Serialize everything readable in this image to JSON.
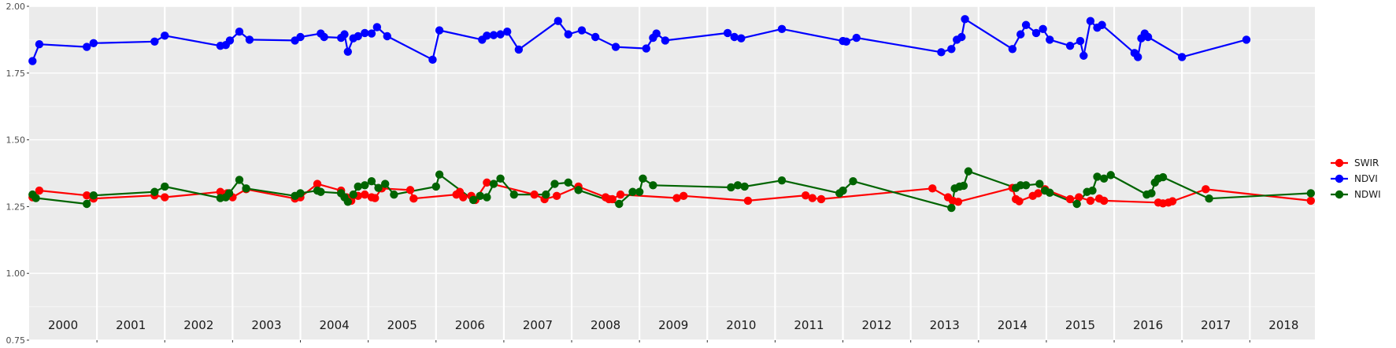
{
  "chart_data": {
    "type": "line",
    "title": "",
    "xlabel": "",
    "ylabel": "",
    "xlim": [
      2000.0,
      2018.96
    ],
    "ylim": [
      0.75,
      2.0
    ],
    "y_ticks": [
      "0.75",
      "1.00",
      "1.25",
      "1.50",
      "1.75",
      "2.00"
    ],
    "y_tick_values": [
      0.75,
      1.0,
      1.25,
      1.5,
      1.75,
      2.0
    ],
    "year_labels": [
      "2000",
      "2001",
      "2002",
      "2003",
      "2004",
      "2005",
      "2006",
      "2007",
      "2008",
      "2009",
      "2010",
      "2011",
      "2012",
      "2013",
      "2014",
      "2015",
      "2016",
      "2017",
      "2018"
    ],
    "grid": true,
    "legend_position": "right",
    "series": [
      {
        "name": "SWIR",
        "color": "#ff0000",
        "points": [
          [
            2000.05,
            1.285
          ],
          [
            2000.15,
            1.31
          ],
          [
            2000.85,
            1.292
          ],
          [
            2000.95,
            1.28
          ],
          [
            2001.85,
            1.292
          ],
          [
            2002.0,
            1.285
          ],
          [
            2002.82,
            1.305
          ],
          [
            2002.92,
            1.3
          ],
          [
            2003.0,
            1.285
          ],
          [
            2003.2,
            1.315
          ],
          [
            2003.92,
            1.28
          ],
          [
            2004.0,
            1.285
          ],
          [
            2004.25,
            1.335
          ],
          [
            2004.6,
            1.31
          ],
          [
            2004.68,
            1.285
          ],
          [
            2004.75,
            1.272
          ],
          [
            2004.85,
            1.29
          ],
          [
            2004.95,
            1.295
          ],
          [
            2005.05,
            1.285
          ],
          [
            2005.1,
            1.282
          ],
          [
            2005.2,
            1.318
          ],
          [
            2005.62,
            1.312
          ],
          [
            2005.67,
            1.28
          ],
          [
            2006.3,
            1.295
          ],
          [
            2006.35,
            1.305
          ],
          [
            2006.4,
            1.285
          ],
          [
            2006.52,
            1.29
          ],
          [
            2006.58,
            1.275
          ],
          [
            2006.75,
            1.34
          ],
          [
            2007.45,
            1.295
          ],
          [
            2007.6,
            1.278
          ],
          [
            2007.78,
            1.29
          ],
          [
            2008.1,
            1.325
          ],
          [
            2008.5,
            1.285
          ],
          [
            2008.55,
            1.278
          ],
          [
            2008.6,
            1.278
          ],
          [
            2008.72,
            1.295
          ],
          [
            2009.55,
            1.282
          ],
          [
            2009.65,
            1.29
          ],
          [
            2010.6,
            1.272
          ],
          [
            2011.45,
            1.292
          ],
          [
            2011.55,
            1.282
          ],
          [
            2011.68,
            1.278
          ],
          [
            2013.32,
            1.318
          ],
          [
            2013.55,
            1.285
          ],
          [
            2013.62,
            1.272
          ],
          [
            2013.7,
            1.268
          ],
          [
            2014.5,
            1.32
          ],
          [
            2014.55,
            1.278
          ],
          [
            2014.6,
            1.27
          ],
          [
            2014.8,
            1.29
          ],
          [
            2014.88,
            1.3
          ],
          [
            2014.98,
            1.315
          ],
          [
            2015.35,
            1.278
          ],
          [
            2015.48,
            1.285
          ],
          [
            2015.65,
            1.272
          ],
          [
            2015.78,
            1.28
          ],
          [
            2015.85,
            1.272
          ],
          [
            2016.65,
            1.265
          ],
          [
            2016.72,
            1.262
          ],
          [
            2016.8,
            1.265
          ],
          [
            2016.86,
            1.27
          ],
          [
            2017.35,
            1.315
          ],
          [
            2018.9,
            1.272
          ]
        ]
      },
      {
        "name": "NDVI",
        "color": "#0000ff",
        "points": [
          [
            2000.05,
            1.795
          ],
          [
            2000.15,
            1.858
          ],
          [
            2000.85,
            1.848
          ],
          [
            2000.95,
            1.862
          ],
          [
            2001.85,
            1.868
          ],
          [
            2002.0,
            1.89
          ],
          [
            2002.82,
            1.852
          ],
          [
            2002.9,
            1.855
          ],
          [
            2002.96,
            1.872
          ],
          [
            2003.1,
            1.905
          ],
          [
            2003.25,
            1.875
          ],
          [
            2003.92,
            1.872
          ],
          [
            2004.0,
            1.885
          ],
          [
            2004.3,
            1.898
          ],
          [
            2004.35,
            1.885
          ],
          [
            2004.6,
            1.882
          ],
          [
            2004.65,
            1.895
          ],
          [
            2004.7,
            1.83
          ],
          [
            2004.78,
            1.88
          ],
          [
            2004.85,
            1.888
          ],
          [
            2004.95,
            1.9
          ],
          [
            2005.05,
            1.898
          ],
          [
            2005.13,
            1.922
          ],
          [
            2005.28,
            1.888
          ],
          [
            2005.95,
            1.8
          ],
          [
            2006.05,
            1.91
          ],
          [
            2006.68,
            1.875
          ],
          [
            2006.75,
            1.89
          ],
          [
            2006.85,
            1.892
          ],
          [
            2006.95,
            1.895
          ],
          [
            2007.05,
            1.905
          ],
          [
            2007.22,
            1.838
          ],
          [
            2007.8,
            1.945
          ],
          [
            2007.95,
            1.895
          ],
          [
            2008.15,
            1.91
          ],
          [
            2008.35,
            1.885
          ],
          [
            2008.65,
            1.848
          ],
          [
            2009.1,
            1.842
          ],
          [
            2009.2,
            1.882
          ],
          [
            2009.25,
            1.898
          ],
          [
            2009.38,
            1.872
          ],
          [
            2010.3,
            1.9
          ],
          [
            2010.4,
            1.885
          ],
          [
            2010.5,
            1.88
          ],
          [
            2011.1,
            1.915
          ],
          [
            2012.0,
            1.87
          ],
          [
            2012.05,
            1.868
          ],
          [
            2012.2,
            1.882
          ],
          [
            2013.45,
            1.828
          ],
          [
            2013.6,
            1.84
          ],
          [
            2013.68,
            1.875
          ],
          [
            2013.75,
            1.885
          ],
          [
            2013.8,
            1.952
          ],
          [
            2014.5,
            1.84
          ],
          [
            2014.62,
            1.895
          ],
          [
            2014.7,
            1.93
          ],
          [
            2014.85,
            1.9
          ],
          [
            2014.95,
            1.915
          ],
          [
            2015.05,
            1.875
          ],
          [
            2015.35,
            1.852
          ],
          [
            2015.5,
            1.87
          ],
          [
            2015.55,
            1.815
          ],
          [
            2015.65,
            1.945
          ],
          [
            2015.75,
            1.92
          ],
          [
            2015.82,
            1.93
          ],
          [
            2016.3,
            1.825
          ],
          [
            2016.35,
            1.81
          ],
          [
            2016.4,
            1.88
          ],
          [
            2016.45,
            1.898
          ],
          [
            2016.5,
            1.885
          ],
          [
            2017.0,
            1.81
          ],
          [
            2017.95,
            1.875
          ]
        ]
      },
      {
        "name": "NDWI",
        "color": "#006400",
        "points": [
          [
            2000.05,
            1.295
          ],
          [
            2000.1,
            1.282
          ],
          [
            2000.85,
            1.26
          ],
          [
            2000.95,
            1.292
          ],
          [
            2001.85,
            1.305
          ],
          [
            2002.0,
            1.325
          ],
          [
            2002.82,
            1.282
          ],
          [
            2002.9,
            1.285
          ],
          [
            2002.95,
            1.3
          ],
          [
            2003.1,
            1.35
          ],
          [
            2003.2,
            1.318
          ],
          [
            2003.92,
            1.29
          ],
          [
            2004.0,
            1.3
          ],
          [
            2004.25,
            1.31
          ],
          [
            2004.3,
            1.305
          ],
          [
            2004.6,
            1.3
          ],
          [
            2004.65,
            1.285
          ],
          [
            2004.7,
            1.268
          ],
          [
            2004.78,
            1.295
          ],
          [
            2004.85,
            1.325
          ],
          [
            2004.95,
            1.33
          ],
          [
            2005.05,
            1.345
          ],
          [
            2005.15,
            1.32
          ],
          [
            2005.25,
            1.335
          ],
          [
            2005.38,
            1.295
          ],
          [
            2006.0,
            1.325
          ],
          [
            2006.05,
            1.37
          ],
          [
            2006.55,
            1.275
          ],
          [
            2006.65,
            1.29
          ],
          [
            2006.75,
            1.285
          ],
          [
            2006.85,
            1.335
          ],
          [
            2006.95,
            1.355
          ],
          [
            2007.15,
            1.295
          ],
          [
            2007.62,
            1.295
          ],
          [
            2007.75,
            1.335
          ],
          [
            2007.95,
            1.34
          ],
          [
            2008.1,
            1.312
          ],
          [
            2008.7,
            1.26
          ],
          [
            2008.9,
            1.305
          ],
          [
            2009.0,
            1.305
          ],
          [
            2009.05,
            1.355
          ],
          [
            2009.2,
            1.33
          ],
          [
            2010.35,
            1.322
          ],
          [
            2010.45,
            1.33
          ],
          [
            2010.55,
            1.325
          ],
          [
            2011.1,
            1.348
          ],
          [
            2011.95,
            1.3
          ],
          [
            2012.0,
            1.31
          ],
          [
            2012.15,
            1.345
          ],
          [
            2013.6,
            1.245
          ],
          [
            2013.65,
            1.318
          ],
          [
            2013.72,
            1.325
          ],
          [
            2013.78,
            1.328
          ],
          [
            2013.85,
            1.382
          ],
          [
            2014.55,
            1.32
          ],
          [
            2014.62,
            1.33
          ],
          [
            2014.7,
            1.33
          ],
          [
            2014.9,
            1.335
          ],
          [
            2014.98,
            1.31
          ],
          [
            2015.05,
            1.302
          ],
          [
            2015.45,
            1.26
          ],
          [
            2015.6,
            1.305
          ],
          [
            2015.68,
            1.31
          ],
          [
            2015.75,
            1.362
          ],
          [
            2015.85,
            1.355
          ],
          [
            2015.95,
            1.368
          ],
          [
            2016.48,
            1.295
          ],
          [
            2016.55,
            1.3
          ],
          [
            2016.6,
            1.34
          ],
          [
            2016.65,
            1.355
          ],
          [
            2016.72,
            1.36
          ],
          [
            2017.4,
            1.28
          ],
          [
            2018.9,
            1.3
          ]
        ]
      }
    ]
  }
}
